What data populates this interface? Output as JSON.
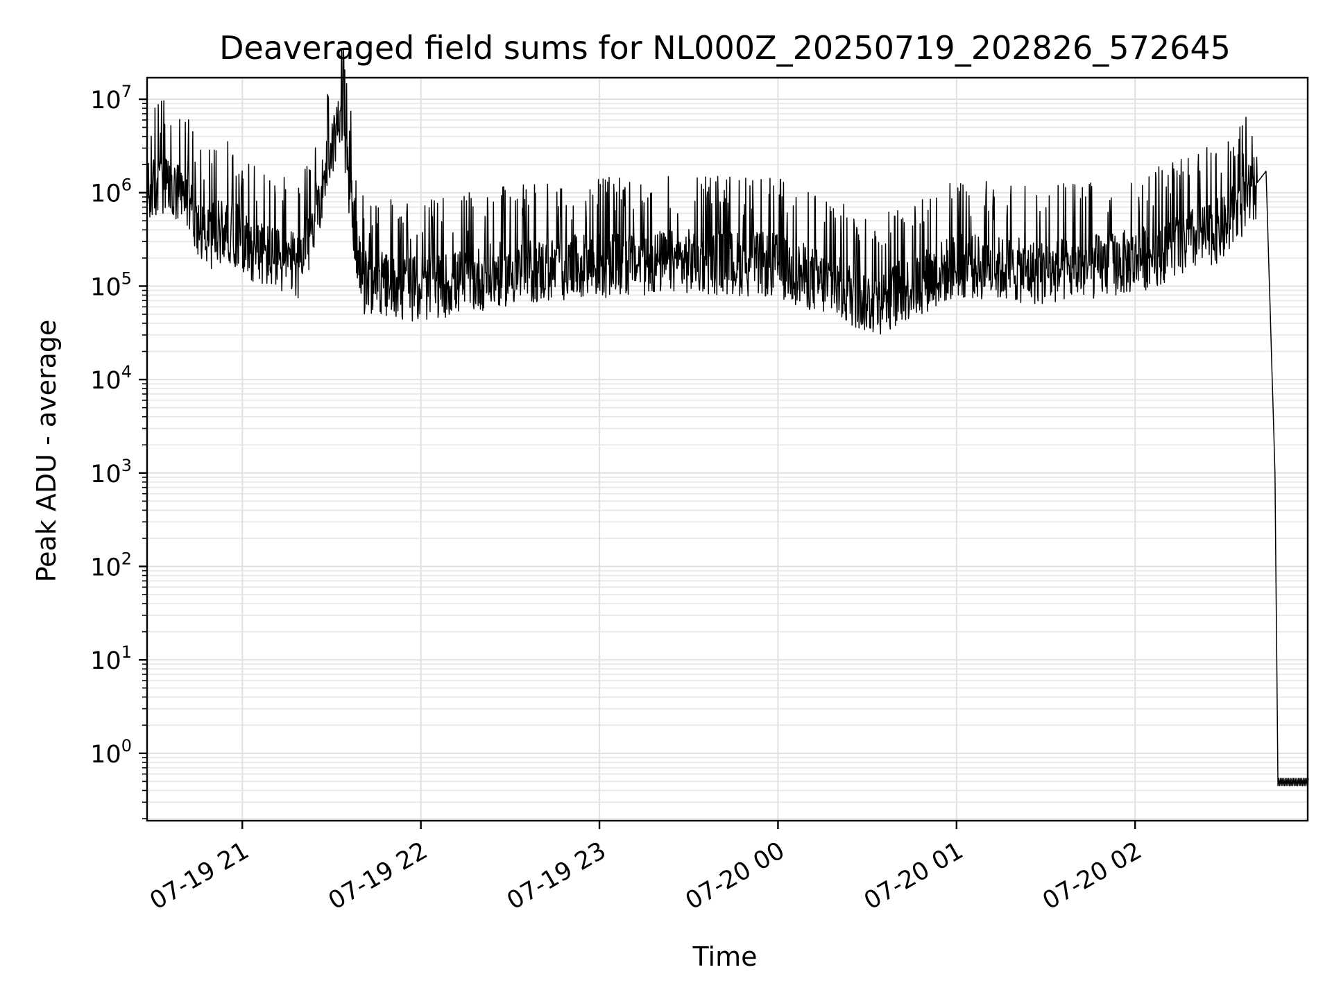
{
  "chart_data": {
    "type": "line",
    "title": "Deaveraged field sums for NL000Z_20250719_202826_572645",
    "xlabel": "Time",
    "ylabel": "Peak ADU - average",
    "yscale": "log",
    "xlim": [
      "2025-07-19 20:28",
      "2025-07-20 02:58"
    ],
    "ylim": [
      0.19,
      17000000
    ],
    "grid": "on",
    "x_ticks": [
      "07-19 21",
      "07-19 22",
      "07-19 23",
      "07-20 00",
      "07-20 01",
      "07-20 02"
    ],
    "y_ticks": [
      "10^0",
      "10^1",
      "10^2",
      "10^3",
      "10^4",
      "10^5",
      "10^6",
      "10^7"
    ],
    "series": [
      {
        "color": "#000000",
        "points": [
          [
            "2025-07-19 20:28",
            1000000
          ],
          [
            "2025-07-19 20:32",
            1300000
          ],
          [
            "2025-07-19 20:36",
            1100000
          ],
          [
            "2025-07-19 20:42",
            800000
          ],
          [
            "2025-07-19 20:48",
            350000
          ],
          [
            "2025-07-19 20:55",
            450000
          ],
          [
            "2025-07-19 21:05",
            250000
          ],
          [
            "2025-07-19 21:20",
            170000
          ],
          [
            "2025-07-19 21:33",
            7500000
          ],
          [
            "2025-07-19 21:40",
            120000
          ],
          [
            "2025-07-19 22:00",
            100000
          ],
          [
            "2025-07-19 22:30",
            150000
          ],
          [
            "2025-07-19 23:00",
            180000
          ],
          [
            "2025-07-19 23:30",
            200000
          ],
          [
            "2025-07-20 00:00",
            180000
          ],
          [
            "2025-07-20 00:33",
            70000
          ],
          [
            "2025-07-20 01:00",
            180000
          ],
          [
            "2025-07-20 01:30",
            150000
          ],
          [
            "2025-07-20 02:00",
            200000
          ],
          [
            "2025-07-20 02:30",
            450000
          ],
          [
            "2025-07-20 02:44",
            1700000
          ],
          [
            "2025-07-20 02:47",
            1000
          ],
          [
            "2025-07-20 02:48",
            0.45
          ],
          [
            "2025-07-20 02:58",
            0.45
          ]
        ]
      }
    ]
  }
}
